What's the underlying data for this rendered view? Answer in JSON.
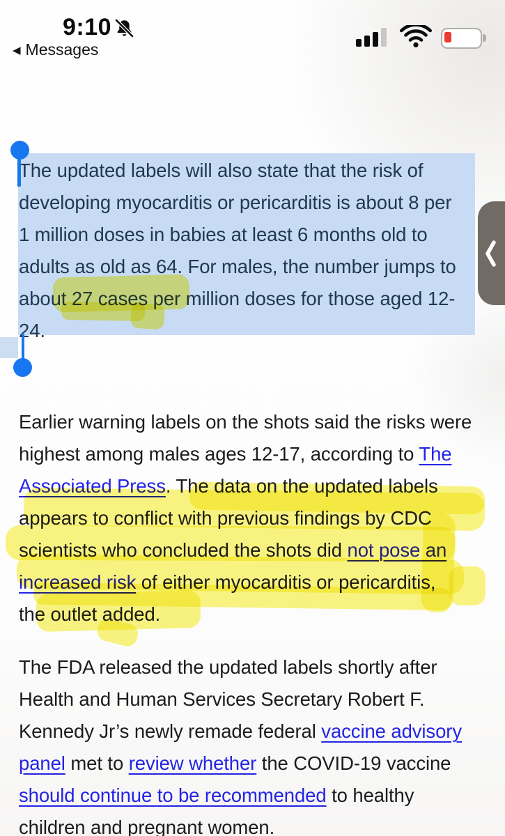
{
  "status_bar": {
    "time": "9:10",
    "back_chevron": "◀",
    "back_label": "Messages",
    "icons": {
      "silent_mode": "bell-slash-icon",
      "cell_signal": "3 of 4 bars",
      "wifi": "full",
      "battery": "low",
      "battery_fill_color": "#ec3b2f"
    }
  },
  "side_tab": {
    "chevron": "❮"
  },
  "annotations": {
    "selection_color": "#c8dbf4",
    "selection_handle_color": "#1877f0",
    "highlighter_color": "#f6ec1c",
    "link_color": "#2424e6"
  },
  "article": {
    "paragraphs": [
      {
        "selected": true,
        "lines": [
          [
            {
              "t": "The updated labels will also state that the risk of"
            }
          ],
          [
            {
              "t": "developing myocarditis or pericarditis is about 8 per"
            }
          ],
          [
            {
              "t": "1 million doses in babies at least 6 months old to"
            }
          ],
          [
            {
              "t": "adults as old as 64. For males, the number jumps to"
            }
          ],
          [
            {
              "t": "about 27 cases per million doses for those aged 12-"
            }
          ],
          [
            {
              "t": "24."
            }
          ]
        ]
      },
      {
        "selected": false,
        "lines": [
          [
            {
              "t": "Earlier warning labels on the shots said the risks were"
            }
          ],
          [
            {
              "t": "highest among males ages 12-17, according to "
            },
            {
              "t": "The",
              "link": true
            }
          ],
          [
            {
              "t": "Associated Press",
              "link": true
            },
            {
              "t": ". The data on the updated labels"
            }
          ],
          [
            {
              "t": "appears to conflict with previous findings by CDC"
            }
          ],
          [
            {
              "t": "scientists who concluded the shots did "
            },
            {
              "t": "not pose an",
              "link": true
            }
          ],
          [
            {
              "t": "increased risk",
              "link": true
            },
            {
              "t": " of either myocarditis or pericarditis,"
            }
          ],
          [
            {
              "t": "the outlet added."
            }
          ]
        ]
      },
      {
        "selected": false,
        "lines": [
          [
            {
              "t": "The FDA released the updated labels shortly after"
            }
          ],
          [
            {
              "t": "Health and Human Services Secretary Robert F."
            }
          ],
          [
            {
              "t": "Kennedy Jr’s newly remade federal "
            },
            {
              "t": "vaccine advisory",
              "link": true
            }
          ],
          [
            {
              "t": "panel",
              "link": true
            },
            {
              "t": " met to "
            },
            {
              "t": "review whether",
              "link": true
            },
            {
              "t": " the COVID-19 vaccine"
            }
          ],
          [
            {
              "t": "should continue to be recommended",
              "link": true
            },
            {
              "t": " to healthy"
            }
          ],
          [
            {
              "t": "children and pregnant women."
            }
          ]
        ]
      }
    ]
  }
}
